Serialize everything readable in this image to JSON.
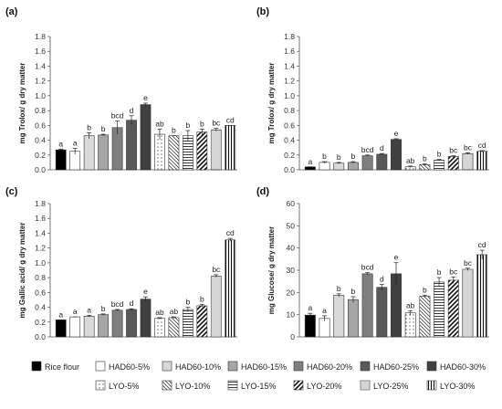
{
  "categories": [
    "Rice flour",
    "HAD60-5%",
    "HAD60-10%",
    "HAD60-15%",
    "HAD60-20%",
    "HAD60-25%",
    "HAD60-30%",
    "LYO-5%",
    "LYO-10%",
    "LYO-15%",
    "LYO-20%",
    "LYO-25%",
    "LYO-30%"
  ],
  "patterns": [
    "solid-black",
    "white",
    "light-gray",
    "gray",
    "mid-gray",
    "dark-gray",
    "darkest-gray",
    "dots-sparse",
    "diagonal-down",
    "horizontal-lines",
    "diagonal-up-thick",
    "dots-dense",
    "vertical-lines"
  ],
  "chart_data": [
    {
      "type": "bar",
      "panel_label": "(a)",
      "ylabel": "mg Trolox/ g dry matter",
      "ylim": [
        0,
        1.8
      ],
      "yticks": [
        "0.0",
        "0.2",
        "0.4",
        "0.6",
        "0.8",
        "1.0",
        "1.2",
        "1.4",
        "1.6",
        "1.8"
      ],
      "values": [
        0.27,
        0.25,
        0.46,
        0.47,
        0.57,
        0.67,
        0.88,
        0.48,
        0.46,
        0.46,
        0.51,
        0.54,
        0.6
      ],
      "errors": [
        0.01,
        0.04,
        0.04,
        0.01,
        0.09,
        0.06,
        0.02,
        0.07,
        0.0,
        0.07,
        0.04,
        0.02,
        0.0
      ],
      "labels": [
        "a",
        "a",
        "b",
        "b",
        "bcd",
        "d",
        "e",
        "ab",
        "b",
        "b",
        "b",
        "bc",
        "cd"
      ]
    },
    {
      "type": "bar",
      "panel_label": "(b)",
      "ylabel": "mg Trolox/ g dry matter",
      "ylim": [
        0,
        1.8
      ],
      "yticks": [
        "0.0",
        "0.2",
        "0.4",
        "0.6",
        "0.8",
        "1.0",
        "1.2",
        "1.4",
        "1.6",
        "1.8"
      ],
      "values": [
        0.04,
        0.1,
        0.09,
        0.1,
        0.19,
        0.21,
        0.41,
        0.04,
        0.07,
        0.13,
        0.18,
        0.22,
        0.25
      ],
      "errors": [
        0.0,
        0.01,
        0.01,
        0.01,
        0.01,
        0.01,
        0.01,
        0.01,
        0.01,
        0.01,
        0.01,
        0.01,
        0.01
      ],
      "labels": [
        "a",
        "b",
        "b",
        "b",
        "bcd",
        "d",
        "e",
        "ab",
        "b",
        "b",
        "bc",
        "bc",
        "cd"
      ]
    },
    {
      "type": "bar",
      "panel_label": "(c)",
      "ylabel": "mg Gallic acid/ g dry matter",
      "ylim": [
        0,
        1.8
      ],
      "yticks": [
        "0.0",
        "0.2",
        "0.4",
        "0.6",
        "0.8",
        "1.0",
        "1.2",
        "1.4",
        "1.6",
        "1.8"
      ],
      "values": [
        0.23,
        0.27,
        0.28,
        0.3,
        0.36,
        0.37,
        0.51,
        0.25,
        0.26,
        0.37,
        0.42,
        0.82,
        1.31
      ],
      "errors": [
        0.0,
        0.0,
        0.01,
        0.01,
        0.01,
        0.01,
        0.03,
        0.01,
        0.01,
        0.03,
        0.02,
        0.02,
        0.02
      ],
      "labels": [
        "a",
        "a",
        "a",
        "b",
        "bcd",
        "d",
        "e",
        "ab",
        "ab",
        "b",
        "b",
        "bc",
        "cd"
      ]
    },
    {
      "type": "bar",
      "panel_label": "(d)",
      "ylabel": "mg Glucose/ g dry matter",
      "ylim": [
        0,
        60
      ],
      "yticks": [
        "0",
        "10",
        "20",
        "30",
        "40",
        "50",
        "60"
      ],
      "values": [
        9.8,
        8.3,
        18.7,
        16.8,
        28.4,
        22.3,
        28.4,
        10.8,
        18.3,
        24.7,
        25.5,
        30.4,
        37.0
      ],
      "errors": [
        0.8,
        1.2,
        0.7,
        1.3,
        0.5,
        1.3,
        5.0,
        1.0,
        0.5,
        2.0,
        1.5,
        0.5,
        2.0
      ],
      "labels": [
        "a",
        "a",
        "b",
        "b",
        "bcd",
        "d",
        "e",
        "ab",
        "b",
        "b",
        "bc",
        "bc",
        "cd"
      ]
    }
  ],
  "legend": {
    "items": [
      "Rice flour",
      "HAD60-5%",
      "HAD60-10%",
      "HAD60-15%",
      "HAD60-20%",
      "HAD60-25%",
      "HAD60-30%",
      "LYO-5%",
      "LYO-10%",
      "LYO-15%",
      "LYO-20%",
      "LYO-25%",
      "LYO-30%"
    ]
  }
}
